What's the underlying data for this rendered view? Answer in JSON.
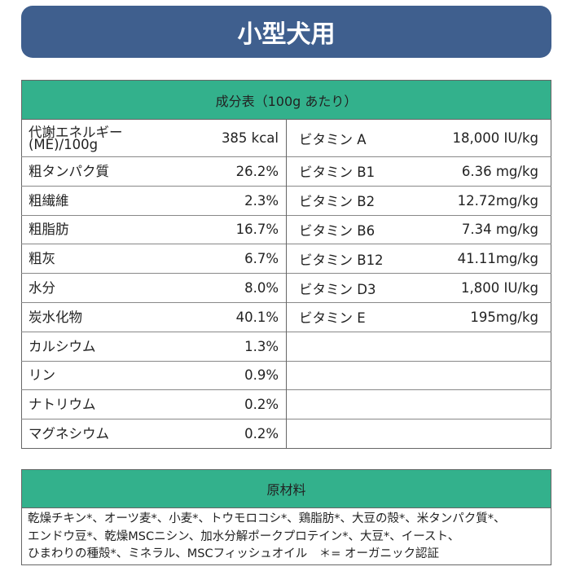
{
  "header": {
    "title": "小型犬用"
  },
  "nutrition": {
    "title": "成分表（100g あたり）",
    "rows": [
      {
        "left": {
          "name": [
            "代謝エネルギー",
            "(ME)/100g"
          ],
          "value": "385 kcal"
        },
        "right": {
          "name": "ビタミン A",
          "value": "18,000 IU/kg"
        }
      },
      {
        "left": {
          "name": "粗タンパク質",
          "value": "26.2%"
        },
        "right": {
          "name": "ビタミン B1",
          "value": "6.36 mg/kg"
        }
      },
      {
        "left": {
          "name": "粗繊維",
          "value": "2.3%"
        },
        "right": {
          "name": "ビタミン B2",
          "value": "12.72mg/kg"
        }
      },
      {
        "left": {
          "name": "粗脂肪",
          "value": "16.7%"
        },
        "right": {
          "name": "ビタミン B6",
          "value": "7.34 mg/kg"
        }
      },
      {
        "left": {
          "name": "粗灰",
          "value": "6.7%"
        },
        "right": {
          "name": "ビタミン B12",
          "value": "41.11mg/kg"
        }
      },
      {
        "left": {
          "name": "水分",
          "value": "8.0%"
        },
        "right": {
          "name": "ビタミン D3",
          "value": "1,800 IU/kg"
        }
      },
      {
        "left": {
          "name": "炭水化物",
          "value": "40.1%"
        },
        "right": {
          "name": "ビタミン E",
          "value": "195mg/kg"
        }
      },
      {
        "left": {
          "name": "カルシウム",
          "value": "1.3%"
        }
      },
      {
        "left": {
          "name": "リン",
          "value": "0.9%"
        }
      },
      {
        "left": {
          "name": "ナトリウム",
          "value": "0.2%"
        }
      },
      {
        "left": {
          "name": "マグネシウム",
          "value": "0.2%"
        }
      }
    ]
  },
  "ingredients": {
    "title": "原材料",
    "lines": [
      "乾燥チキン*、オーツ麦*、小麦*、トウモロコシ*、鶏脂肪*、大豆の殻*、米タンパク質*、",
      "エンドウ豆*、乾燥MSCニシン、加水分解ポークプロテイン*、大豆*、イースト、",
      "ひまわりの種殻*、ミネラル、MSCフィッシュオイル　＊= オーガニック認証"
    ]
  }
}
